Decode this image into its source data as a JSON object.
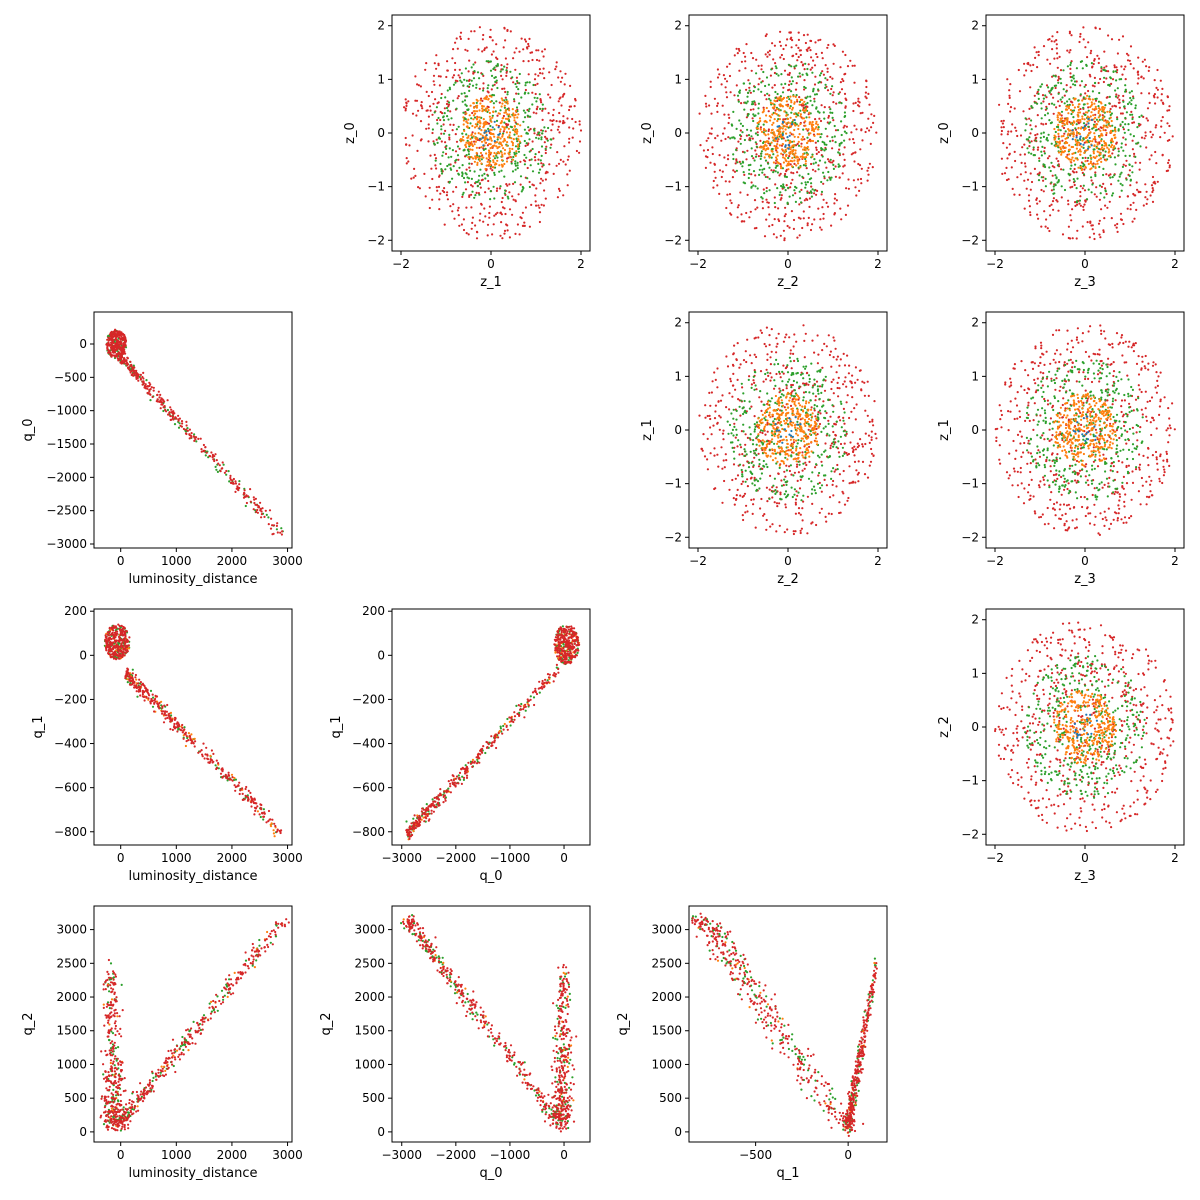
{
  "figure": {
    "type": "pairwise-scatter-matrix"
  },
  "colors": {
    "red": "#d62728",
    "green": "#2ca02c",
    "orange": "#ff7f0e",
    "blue": "#1f77b4"
  },
  "chart_data": [
    {
      "type": "scatter",
      "id": "z1_vs_z0",
      "shape": "disk",
      "xlabel": "z_1",
      "ylabel": "z_0",
      "xlim": [
        -2.2,
        2.2
      ],
      "ylim": [
        -2.2,
        2.2
      ],
      "xticks": [
        -2,
        0,
        2
      ],
      "yticks": [
        -2,
        -1,
        0,
        1,
        2
      ],
      "series": [
        {
          "color": "red",
          "radius": 2.0,
          "count": 600
        },
        {
          "color": "green",
          "radius": 1.35,
          "count": 380
        },
        {
          "color": "orange",
          "radius": 0.7,
          "count": 320
        },
        {
          "color": "blue",
          "radius": 0.3,
          "count": 15
        }
      ]
    },
    {
      "type": "scatter",
      "id": "z2_vs_z0",
      "shape": "disk",
      "xlabel": "z_2",
      "ylabel": "z_0",
      "xlim": [
        -2.2,
        2.2
      ],
      "ylim": [
        -2.2,
        2.2
      ],
      "xticks": [
        -2,
        0,
        2
      ],
      "yticks": [
        -2,
        -1,
        0,
        1,
        2
      ],
      "series": [
        {
          "color": "red",
          "radius": 2.0,
          "count": 600
        },
        {
          "color": "green",
          "radius": 1.35,
          "count": 380
        },
        {
          "color": "orange",
          "radius": 0.7,
          "count": 320
        },
        {
          "color": "blue",
          "radius": 0.3,
          "count": 15
        }
      ]
    },
    {
      "type": "scatter",
      "id": "z3_vs_z0",
      "shape": "disk",
      "xlabel": "z_3",
      "ylabel": "z_0",
      "xlim": [
        -2.2,
        2.2
      ],
      "ylim": [
        -2.2,
        2.2
      ],
      "xticks": [
        -2,
        0,
        2
      ],
      "yticks": [
        -2,
        -1,
        0,
        1,
        2
      ],
      "series": [
        {
          "color": "red",
          "radius": 2.0,
          "count": 600
        },
        {
          "color": "green",
          "radius": 1.35,
          "count": 380
        },
        {
          "color": "orange",
          "radius": 0.7,
          "count": 320
        },
        {
          "color": "blue",
          "radius": 0.3,
          "count": 15
        }
      ]
    },
    {
      "type": "scatter",
      "id": "ld_vs_q0",
      "shape": "diagonal",
      "xlabel": "luminosity_distance",
      "ylabel": "q_0",
      "xlim": [
        -480,
        3080
      ],
      "ylim": [
        -3060,
        480
      ],
      "xticks": [
        0,
        1000,
        2000,
        3000
      ],
      "yticks": [
        -3000,
        -2500,
        -2000,
        -1500,
        -1000,
        -500,
        0
      ],
      "line": {
        "x": [
          0,
          2900
        ],
        "y": [
          -200,
          -2870
        ],
        "spread": 40
      },
      "blob": {
        "cx": -80,
        "cy": 0,
        "rx": 180,
        "ry": 220
      },
      "series": [
        {
          "color": "green",
          "count": 150
        },
        {
          "color": "red",
          "count": 550
        }
      ]
    },
    {
      "type": "scatter",
      "id": "z2_vs_z1",
      "shape": "disk",
      "xlabel": "z_2",
      "ylabel": "z_1",
      "xlim": [
        -2.2,
        2.2
      ],
      "ylim": [
        -2.2,
        2.2
      ],
      "xticks": [
        -2,
        0,
        2
      ],
      "yticks": [
        -2,
        -1,
        0,
        1,
        2
      ],
      "series": [
        {
          "color": "red",
          "radius": 2.0,
          "count": 600
        },
        {
          "color": "green",
          "radius": 1.35,
          "count": 380
        },
        {
          "color": "orange",
          "radius": 0.7,
          "count": 320
        },
        {
          "color": "blue",
          "radius": 0.3,
          "count": 15
        }
      ]
    },
    {
      "type": "scatter",
      "id": "z3_vs_z1",
      "shape": "disk",
      "xlabel": "z_3",
      "ylabel": "z_1",
      "xlim": [
        -2.2,
        2.2
      ],
      "ylim": [
        -2.2,
        2.2
      ],
      "xticks": [
        -2,
        0,
        2
      ],
      "yticks": [
        -2,
        -1,
        0,
        1,
        2
      ],
      "series": [
        {
          "color": "red",
          "radius": 2.0,
          "count": 600
        },
        {
          "color": "green",
          "radius": 1.35,
          "count": 380
        },
        {
          "color": "orange",
          "radius": 0.7,
          "count": 320
        },
        {
          "color": "blue",
          "radius": 0.3,
          "count": 15
        }
      ]
    },
    {
      "type": "scatter",
      "id": "ld_vs_q1",
      "shape": "diagonal",
      "xlabel": "luminosity_distance",
      "ylabel": "q_1",
      "xlim": [
        -480,
        3080
      ],
      "ylim": [
        -860,
        210
      ],
      "xticks": [
        0,
        1000,
        2000,
        3000
      ],
      "yticks": [
        -800,
        -600,
        -400,
        -200,
        0,
        200
      ],
      "line": {
        "x": [
          100,
          2900
        ],
        "y": [
          -80,
          -810
        ],
        "spread": 15
      },
      "blob": {
        "cx": -60,
        "cy": 60,
        "rx": 230,
        "ry": 80
      },
      "series": [
        {
          "color": "green",
          "count": 150
        },
        {
          "color": "orange",
          "count": 80
        },
        {
          "color": "red",
          "count": 550
        }
      ]
    },
    {
      "type": "scatter",
      "id": "q0_vs_q1",
      "shape": "diagonal",
      "xlabel": "q_0",
      "ylabel": "q_1",
      "xlim": [
        -3180,
        480
      ],
      "ylim": [
        -860,
        210
      ],
      "xticks": [
        -3000,
        -2000,
        -1000,
        0
      ],
      "yticks": [
        -800,
        -600,
        -400,
        -200,
        0,
        200
      ],
      "line": {
        "x": [
          -2900,
          -100
        ],
        "y": [
          -810,
          -60
        ],
        "spread": 15
      },
      "blob": {
        "cx": 50,
        "cy": 50,
        "rx": 230,
        "ry": 90
      },
      "series": [
        {
          "color": "green",
          "count": 150
        },
        {
          "color": "orange",
          "count": 80
        },
        {
          "color": "red",
          "count": 550
        }
      ]
    },
    {
      "type": "scatter",
      "id": "z3_vs_z2",
      "shape": "disk",
      "xlabel": "z_3",
      "ylabel": "z_2",
      "xlim": [
        -2.2,
        2.2
      ],
      "ylim": [
        -2.2,
        2.2
      ],
      "xticks": [
        -2,
        0,
        2
      ],
      "yticks": [
        -2,
        -1,
        0,
        1,
        2
      ],
      "series": [
        {
          "color": "red",
          "radius": 2.0,
          "count": 600
        },
        {
          "color": "green",
          "radius": 1.35,
          "count": 380
        },
        {
          "color": "orange",
          "radius": 0.7,
          "count": 320
        },
        {
          "color": "blue",
          "radius": 0.3,
          "count": 15
        }
      ]
    },
    {
      "type": "scatter",
      "id": "ld_vs_q2",
      "shape": "vee",
      "xlabel": "luminosity_distance",
      "ylabel": "q_2",
      "xlim": [
        -480,
        3080
      ],
      "ylim": [
        -150,
        3350
      ],
      "xticks": [
        0,
        1000,
        2000,
        3000
      ],
      "yticks": [
        0,
        500,
        1000,
        1500,
        2000,
        2500,
        3000
      ],
      "line": {
        "x": [
          0,
          2950
        ],
        "y": [
          150,
          3150
        ],
        "spread": 50
      },
      "spike": {
        "x0": -100,
        "y0": 150,
        "x1": -180,
        "y1": 2400,
        "spread": 110
      },
      "series": [
        {
          "color": "green",
          "count": 180
        },
        {
          "color": "orange",
          "count": 40
        },
        {
          "color": "red",
          "count": 600
        }
      ]
    },
    {
      "type": "scatter",
      "id": "q0_vs_q2",
      "shape": "vee",
      "xlabel": "q_0",
      "ylabel": "q_2",
      "xlim": [
        -3180,
        480
      ],
      "ylim": [
        -150,
        3350
      ],
      "xticks": [
        -3000,
        -2000,
        -1000,
        0
      ],
      "yticks": [
        0,
        500,
        1000,
        1500,
        2000,
        2500,
        3000
      ],
      "line": {
        "x": [
          -2900,
          -100
        ],
        "y": [
          3150,
          150
        ],
        "spread": 50
      },
      "spike": {
        "x0": -50,
        "y0": 150,
        "x1": 0,
        "y1": 2400,
        "spread": 110
      },
      "series": [
        {
          "color": "green",
          "count": 180
        },
        {
          "color": "orange",
          "count": 40
        },
        {
          "color": "red",
          "count": 600
        }
      ]
    },
    {
      "type": "scatter",
      "id": "q1_vs_q2",
      "shape": "vee",
      "xlabel": "q_1",
      "ylabel": "q_2",
      "xlim": [
        -860,
        210
      ],
      "ylim": [
        -150,
        3350
      ],
      "xticks": [
        -500,
        0
      ],
      "yticks": [
        0,
        500,
        1000,
        1500,
        2000,
        2500,
        3000
      ],
      "line": {
        "x": [
          -780,
          -20
        ],
        "y": [
          3150,
          100
        ],
        "spread": 40
      },
      "spike": {
        "x0": 0,
        "y0": 100,
        "x1": 150,
        "y1": 2450,
        "spread": 12
      },
      "series": [
        {
          "color": "green",
          "count": 180
        },
        {
          "color": "orange",
          "count": 40
        },
        {
          "color": "red",
          "count": 600
        }
      ]
    }
  ]
}
